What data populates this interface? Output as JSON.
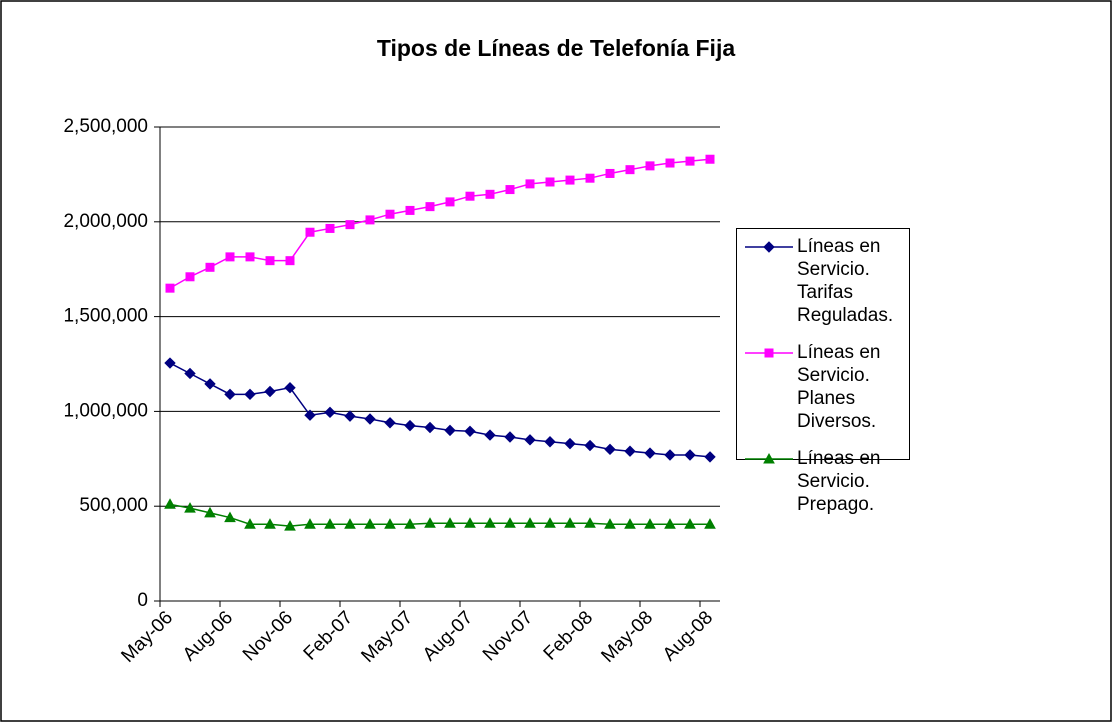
{
  "chart_data": {
    "type": "line",
    "title": "Tipos de Líneas de Telefonía Fija",
    "categories": [
      "May-06",
      null,
      null,
      "Aug-06",
      null,
      null,
      "Nov-06",
      null,
      null,
      "Feb-07",
      null,
      null,
      "May-07",
      null,
      null,
      "Aug-07",
      null,
      null,
      "Nov-07",
      null,
      null,
      "Feb-08",
      null,
      null,
      "May-08",
      null,
      null,
      "Aug-08"
    ],
    "series": [
      {
        "name": "Líneas en Servicio. Tarifas Reguladas.",
        "color": "#000080",
        "marker": "diamond",
        "values": [
          1255000,
          1200000,
          1145000,
          1090000,
          1090000,
          1105000,
          1125000,
          980000,
          995000,
          975000,
          960000,
          940000,
          925000,
          915000,
          900000,
          895000,
          875000,
          865000,
          850000,
          840000,
          830000,
          820000,
          800000,
          790000,
          780000,
          770000,
          770000,
          760000
        ]
      },
      {
        "name": "Líneas en Servicio. Planes Diversos.",
        "color": "#ff00ff",
        "marker": "square",
        "values": [
          1650000,
          1710000,
          1760000,
          1815000,
          1815000,
          1795000,
          1795000,
          1945000,
          1965000,
          1985000,
          2010000,
          2040000,
          2060000,
          2080000,
          2105000,
          2135000,
          2145000,
          2170000,
          2200000,
          2210000,
          2220000,
          2230000,
          2255000,
          2275000,
          2295000,
          2310000,
          2320000,
          2330000
        ]
      },
      {
        "name": "Líneas en Servicio. Prepago.",
        "color": "#008000",
        "marker": "triangle",
        "values": [
          510000,
          490000,
          465000,
          440000,
          405000,
          405000,
          395000,
          405000,
          405000,
          405000,
          405000,
          405000,
          405000,
          410000,
          410000,
          410000,
          410000,
          410000,
          410000,
          410000,
          410000,
          410000,
          405000,
          405000,
          405000,
          405000,
          405000,
          405000
        ]
      }
    ],
    "ylim": [
      0,
      2500000
    ],
    "yticks": [
      0,
      {
        "value": 500000,
        "label": "500,000"
      },
      {
        "value": 1000000,
        "label": "1,000,000"
      },
      {
        "value": 1500000,
        "label": "1,500,000"
      },
      {
        "value": 2000000,
        "label": "2,000,000"
      },
      {
        "value": 2500000,
        "label": "2,500,000"
      }
    ],
    "grid": true,
    "legend": "right"
  }
}
